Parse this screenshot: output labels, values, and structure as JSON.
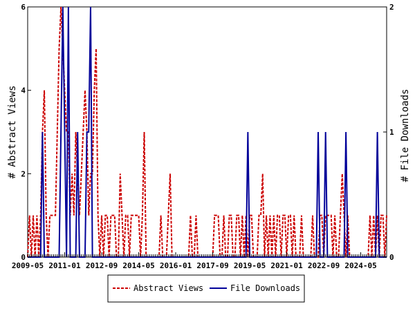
{
  "chart_data": {
    "type": "line",
    "x_tick_labels": [
      "2009-05",
      "2011-01",
      "2012-09",
      "2014-05",
      "2016-01",
      "2017-09",
      "2019-05",
      "2021-01",
      "2022-09",
      "2024-05"
    ],
    "x_ticks_months": [
      "2009-05",
      "2011-01",
      "2012-09",
      "2014-05",
      "2016-01",
      "2017-09",
      "2019-05",
      "2021-01",
      "2022-09",
      "2024-05"
    ],
    "x_range": [
      "2009-05",
      "2025-07"
    ],
    "ylabel_left": "# Abstract Views",
    "ylabel_right": "# File Downloads",
    "ylim_left": [
      0,
      6
    ],
    "ylim_right": [
      0,
      2
    ],
    "yticks_left": [
      "0",
      "2",
      "4",
      "6"
    ],
    "yticks_right": [
      "0",
      "1",
      "2"
    ],
    "legend_position": "bottom-center",
    "series": [
      {
        "name": "Abstract Views",
        "axis": "left",
        "color": "#cc0000",
        "style": "dashed",
        "points": [
          [
            "2009-06",
            1
          ],
          [
            "2009-07",
            0
          ],
          [
            "2009-08",
            1
          ],
          [
            "2009-09",
            0
          ],
          [
            "2009-10",
            1
          ],
          [
            "2009-11",
            0
          ],
          [
            "2009-12",
            1
          ],
          [
            "2010-01",
            3
          ],
          [
            "2010-02",
            4
          ],
          [
            "2010-03",
            1
          ],
          [
            "2010-04",
            0
          ],
          [
            "2010-05",
            1
          ],
          [
            "2010-06",
            1
          ],
          [
            "2010-07",
            1
          ],
          [
            "2010-08",
            1
          ],
          [
            "2010-09",
            3
          ],
          [
            "2010-10",
            5
          ],
          [
            "2010-11",
            6
          ],
          [
            "2010-12",
            5
          ],
          [
            "2011-01",
            4
          ],
          [
            "2011-02",
            3
          ],
          [
            "2011-03",
            3
          ],
          [
            "2011-04",
            1
          ],
          [
            "2011-05",
            2
          ],
          [
            "2011-06",
            1
          ],
          [
            "2011-07",
            3
          ],
          [
            "2011-08",
            2
          ],
          [
            "2011-09",
            1
          ],
          [
            "2011-10",
            2
          ],
          [
            "2011-11",
            3
          ],
          [
            "2011-12",
            4
          ],
          [
            "2012-01",
            3
          ],
          [
            "2012-02",
            1
          ],
          [
            "2012-03",
            2
          ],
          [
            "2012-04",
            2
          ],
          [
            "2012-05",
            4
          ],
          [
            "2012-06",
            5
          ],
          [
            "2012-07",
            1
          ],
          [
            "2012-08",
            0
          ],
          [
            "2012-09",
            1
          ],
          [
            "2012-10",
            0
          ],
          [
            "2012-11",
            1
          ],
          [
            "2013-01",
            0
          ],
          [
            "2013-02",
            1
          ],
          [
            "2013-05",
            0
          ],
          [
            "2013-07",
            2
          ],
          [
            "2013-08",
            1
          ],
          [
            "2013-09",
            0
          ],
          [
            "2013-10",
            1
          ],
          [
            "2013-12",
            0
          ],
          [
            "2014-01",
            1
          ],
          [
            "2014-06",
            0
          ],
          [
            "2014-07",
            1
          ],
          [
            "2014-08",
            3
          ],
          [
            "2014-09",
            0
          ],
          [
            "2015-05",
            1
          ],
          [
            "2015-06",
            0
          ],
          [
            "2015-09",
            1
          ],
          [
            "2015-10",
            2
          ],
          [
            "2015-11",
            0
          ],
          [
            "2016-09",
            1
          ],
          [
            "2016-10",
            0
          ],
          [
            "2016-12",
            1
          ],
          [
            "2017-01",
            0
          ],
          [
            "2017-10",
            1
          ],
          [
            "2017-11",
            1
          ],
          [
            "2017-12",
            1
          ],
          [
            "2018-01",
            0
          ],
          [
            "2018-03",
            1
          ],
          [
            "2018-04",
            0
          ],
          [
            "2018-06",
            1
          ],
          [
            "2018-07",
            1
          ],
          [
            "2018-08",
            0
          ],
          [
            "2018-10",
            1
          ],
          [
            "2018-11",
            1
          ],
          [
            "2018-12",
            0
          ],
          [
            "2019-01",
            1
          ],
          [
            "2019-02",
            0
          ],
          [
            "2019-03",
            1
          ],
          [
            "2019-04",
            0
          ],
          [
            "2019-05",
            1
          ],
          [
            "2019-06",
            1
          ],
          [
            "2019-07",
            0
          ],
          [
            "2019-10",
            1
          ],
          [
            "2019-11",
            1
          ],
          [
            "2019-12",
            2
          ],
          [
            "2020-01",
            0
          ],
          [
            "2020-02",
            1
          ],
          [
            "2020-03",
            0
          ],
          [
            "2020-04",
            1
          ],
          [
            "2020-05",
            0
          ],
          [
            "2020-06",
            1
          ],
          [
            "2020-07",
            0
          ],
          [
            "2020-08",
            1
          ],
          [
            "2020-09",
            1
          ],
          [
            "2020-10",
            0
          ],
          [
            "2020-11",
            1
          ],
          [
            "2020-12",
            1
          ],
          [
            "2021-01",
            0
          ],
          [
            "2021-02",
            1
          ],
          [
            "2021-03",
            1
          ],
          [
            "2021-04",
            0
          ],
          [
            "2021-05",
            1
          ],
          [
            "2021-06",
            0
          ],
          [
            "2021-09",
            1
          ],
          [
            "2021-10",
            0
          ],
          [
            "2022-03",
            1
          ],
          [
            "2022-04",
            0
          ],
          [
            "2022-07",
            1
          ],
          [
            "2022-08",
            1
          ],
          [
            "2022-09",
            0
          ],
          [
            "2022-10",
            1
          ],
          [
            "2023-02",
            0
          ],
          [
            "2023-03",
            1
          ],
          [
            "2023-04",
            0
          ],
          [
            "2023-06",
            1
          ],
          [
            "2023-07",
            2
          ],
          [
            "2023-08",
            1
          ],
          [
            "2023-09",
            0
          ],
          [
            "2023-10",
            1
          ],
          [
            "2023-11",
            0
          ],
          [
            "2024-10",
            1
          ],
          [
            "2024-11",
            0
          ],
          [
            "2024-12",
            1
          ],
          [
            "2025-01",
            0
          ],
          [
            "2025-02",
            1
          ],
          [
            "2025-03",
            0
          ],
          [
            "2025-04",
            1
          ],
          [
            "2025-05",
            1
          ],
          [
            "2025-06",
            0
          ],
          [
            "2025-07",
            1
          ]
        ]
      },
      {
        "name": "File Downloads",
        "axis": "right",
        "color": "#000099",
        "style": "solid",
        "points": [
          [
            "2010-01",
            1
          ],
          [
            "2010-02",
            0
          ],
          [
            "2010-11",
            1
          ],
          [
            "2010-12",
            2
          ],
          [
            "2011-01",
            1
          ],
          [
            "2011-02",
            0
          ],
          [
            "2011-03",
            2
          ],
          [
            "2011-04",
            0
          ],
          [
            "2011-08",
            1
          ],
          [
            "2011-09",
            0
          ],
          [
            "2012-01",
            1
          ],
          [
            "2012-02",
            1
          ],
          [
            "2012-03",
            2
          ],
          [
            "2012-04",
            0
          ],
          [
            "2019-04",
            1
          ],
          [
            "2019-05",
            0
          ],
          [
            "2022-06",
            1
          ],
          [
            "2022-07",
            0
          ],
          [
            "2022-10",
            1
          ],
          [
            "2022-11",
            0
          ],
          [
            "2023-09",
            1
          ],
          [
            "2023-10",
            0
          ],
          [
            "2025-02",
            1
          ],
          [
            "2025-03",
            0
          ]
        ]
      }
    ]
  }
}
